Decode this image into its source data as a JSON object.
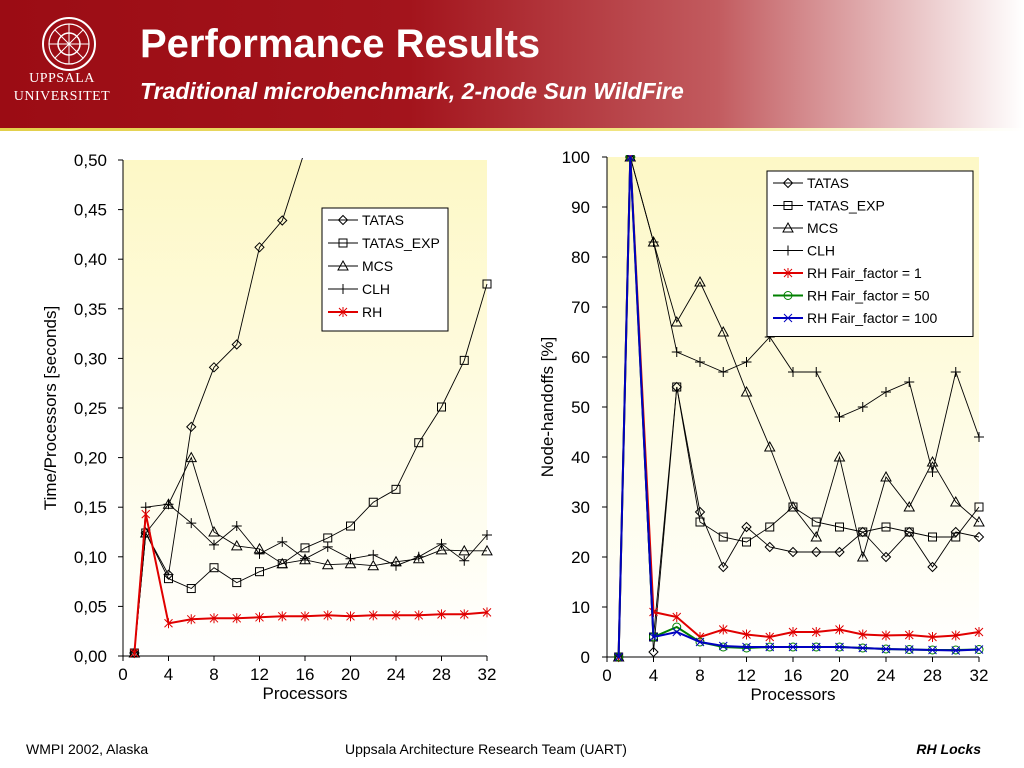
{
  "header": {
    "logo_line1": "UPPSALA",
    "logo_line2": "UNIVERSITET",
    "title": "Performance Results",
    "subtitle": "Traditional microbenchmark, 2-node Sun WildFire"
  },
  "footer": {
    "left": "WMPI 2002, Alaska",
    "center": "Uppsala Architecture Research Team (UART)",
    "right": "RH Locks"
  },
  "chart_data": [
    {
      "type": "line",
      "xlabel": "Processors",
      "ylabel": "Time/Processors [seconds]",
      "xlim": [
        0,
        32
      ],
      "ylim": [
        0,
        0.5
      ],
      "xticks": [
        "0",
        "4",
        "8",
        "12",
        "16",
        "20",
        "24",
        "28",
        "32"
      ],
      "yticks": [
        "0,00",
        "0,05",
        "0,10",
        "0,15",
        "0,20",
        "0,25",
        "0,30",
        "0,35",
        "0,40",
        "0,45",
        "0,50"
      ],
      "grid": false,
      "legend_position": "upper-right",
      "series": [
        {
          "name": "TATAS",
          "marker": "diamond",
          "color": "#000000",
          "x": [
            1,
            2,
            4,
            6,
            8,
            10,
            12,
            14,
            16
          ],
          "y": [
            0.003,
            0.124,
            0.082,
            0.231,
            0.291,
            0.314,
            0.412,
            0.439,
            0.51
          ]
        },
        {
          "name": "TATAS_EXP",
          "marker": "square",
          "color": "#000000",
          "x": [
            1,
            2,
            4,
            6,
            8,
            10,
            12,
            14,
            16,
            18,
            20,
            22,
            24,
            26,
            28,
            30,
            32
          ],
          "y": [
            0.003,
            0.124,
            0.078,
            0.068,
            0.089,
            0.074,
            0.085,
            0.093,
            0.109,
            0.119,
            0.131,
            0.155,
            0.168,
            0.215,
            0.251,
            0.298,
            0.375
          ]
        },
        {
          "name": "MCS",
          "marker": "triangle",
          "color": "#000000",
          "x": [
            1,
            2,
            4,
            6,
            8,
            10,
            12,
            14,
            16,
            18,
            20,
            22,
            24,
            26,
            28,
            30,
            32
          ],
          "y": [
            0.003,
            0.124,
            0.153,
            0.2,
            0.125,
            0.111,
            0.108,
            0.093,
            0.097,
            0.092,
            0.093,
            0.091,
            0.095,
            0.098,
            0.107,
            0.106,
            0.106
          ]
        },
        {
          "name": "CLH",
          "marker": "plus",
          "color": "#000000",
          "x": [
            1,
            2,
            4,
            6,
            8,
            10,
            12,
            14,
            16,
            18,
            20,
            22,
            24,
            26,
            28,
            30,
            32
          ],
          "y": [
            0.003,
            0.15,
            0.153,
            0.134,
            0.112,
            0.131,
            0.103,
            0.115,
            0.098,
            0.11,
            0.098,
            0.102,
            0.091,
            0.1,
            0.113,
            0.096,
            0.122
          ]
        },
        {
          "name": "RH",
          "marker": "star",
          "color": "#e00000",
          "x": [
            1,
            2,
            4,
            6,
            8,
            10,
            12,
            14,
            16,
            18,
            20,
            22,
            24,
            26,
            28,
            30,
            32
          ],
          "y": [
            0.003,
            0.143,
            0.033,
            0.037,
            0.038,
            0.038,
            0.039,
            0.04,
            0.04,
            0.041,
            0.04,
            0.041,
            0.041,
            0.041,
            0.042,
            0.042,
            0.044
          ]
        }
      ]
    },
    {
      "type": "line",
      "xlabel": "Processors",
      "ylabel": "Node-handoffs [%]",
      "xlim": [
        0,
        32
      ],
      "ylim": [
        0,
        100
      ],
      "xticks": [
        "0",
        "4",
        "8",
        "12",
        "16",
        "20",
        "24",
        "28",
        "32"
      ],
      "yticks": [
        "0",
        "10",
        "20",
        "30",
        "40",
        "50",
        "60",
        "70",
        "80",
        "90",
        "100"
      ],
      "grid": false,
      "legend_position": "upper-right",
      "series": [
        {
          "name": "TATAS",
          "marker": "diamond",
          "color": "#000000",
          "x": [
            1,
            2,
            4,
            6,
            8,
            10,
            12,
            14,
            16,
            18,
            20,
            22,
            24,
            26,
            28,
            30,
            32
          ],
          "y": [
            0,
            100,
            1,
            54,
            29,
            18,
            26,
            22,
            21,
            21,
            21,
            25,
            20,
            25,
            18,
            25,
            24
          ]
        },
        {
          "name": "TATAS_EXP",
          "marker": "square",
          "color": "#000000",
          "x": [
            1,
            2,
            4,
            6,
            8,
            10,
            12,
            14,
            16,
            18,
            20,
            22,
            24,
            26,
            28,
            30,
            32
          ],
          "y": [
            0,
            100,
            4,
            54,
            27,
            24,
            23,
            26,
            30,
            27,
            26,
            25,
            26,
            25,
            24,
            24,
            30
          ]
        },
        {
          "name": "MCS",
          "marker": "triangle",
          "color": "#000000",
          "x": [
            1,
            2,
            4,
            6,
            8,
            10,
            12,
            14,
            16,
            18,
            20,
            22,
            24,
            26,
            28,
            30,
            32
          ],
          "y": [
            0,
            100,
            83,
            67,
            75,
            65,
            53,
            42,
            30,
            24,
            40,
            20,
            36,
            30,
            39,
            31,
            27
          ]
        },
        {
          "name": "CLH",
          "marker": "plus",
          "color": "#000000",
          "x": [
            1,
            2,
            4,
            6,
            8,
            10,
            12,
            14,
            16,
            18,
            20,
            22,
            24,
            26,
            28,
            30,
            32
          ],
          "y": [
            0,
            100,
            83,
            61,
            59,
            57,
            59,
            64,
            57,
            57,
            48,
            50,
            53,
            55,
            37,
            57,
            44
          ]
        },
        {
          "name": "RH Fair_factor = 1",
          "marker": "star",
          "color": "#e00000",
          "x": [
            1,
            2,
            4,
            6,
            8,
            10,
            12,
            14,
            16,
            18,
            20,
            22,
            24,
            26,
            28,
            30,
            32
          ],
          "y": [
            0,
            100,
            9,
            8,
            4,
            5.5,
            4.5,
            4,
            5,
            5,
            5.5,
            4.5,
            4.3,
            4.4,
            4,
            4.3,
            5
          ]
        },
        {
          "name": "RH Fair_factor = 50",
          "marker": "circle",
          "color": "#008000",
          "x": [
            1,
            2,
            4,
            6,
            8,
            10,
            12,
            14,
            16,
            18,
            20,
            22,
            24,
            26,
            28,
            30,
            32
          ],
          "y": [
            0,
            100,
            4,
            6,
            3,
            2,
            1.8,
            2,
            2,
            2,
            2,
            1.8,
            1.6,
            1.5,
            1.4,
            1.4,
            1.5
          ]
        },
        {
          "name": "RH Fair_factor = 100",
          "marker": "cross",
          "color": "#0000c0",
          "x": [
            1,
            2,
            4,
            6,
            8,
            10,
            12,
            14,
            16,
            18,
            20,
            22,
            24,
            26,
            28,
            30,
            32
          ],
          "y": [
            0,
            100,
            4,
            5,
            3,
            2.2,
            2,
            2,
            2,
            2,
            2,
            1.8,
            1.6,
            1.5,
            1.4,
            1.3,
            1.5
          ]
        }
      ]
    }
  ]
}
